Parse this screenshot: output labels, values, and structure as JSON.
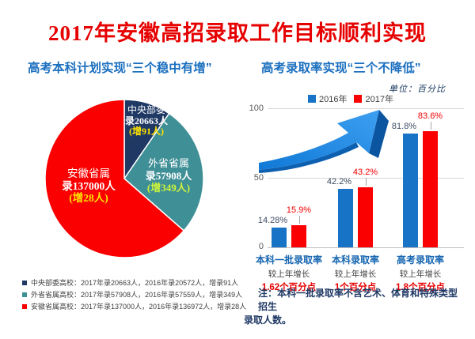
{
  "title": "2017年安徽高招录取工作目标顺利实现",
  "left": {
    "subtitle": "高考本科计划实现“三个稳中有增”",
    "legend": [
      {
        "color": "#1F3864",
        "text": "中央部委高校：2017年录20663人，2016年录20572人，增录91人"
      },
      {
        "color": "#3F8F96",
        "text": "外省省属高校：2017年录57908人，2016年录57559人，增录349人"
      },
      {
        "color": "#FA0000",
        "text": "安徽省属高校：2017年录137000人，2016年录136972人，增录28人"
      }
    ]
  },
  "right": {
    "subtitle": "高考录取率实现“三个不降低”",
    "unit": "单位：百分比",
    "note_line1": "注：本科一批录取率不含艺术、体育和特殊类型招生",
    "note_line2": "录取人数。"
  },
  "chart_data": [
    {
      "type": "pie",
      "title": "高考本科计划实现“三个稳中有增”",
      "start_angle_deg": 0,
      "slices": [
        {
          "id": "central-ministry",
          "name": "中央部委",
          "value": 20663,
          "value_2016": 20572,
          "delta": 91,
          "color": "#1F3864",
          "delta_color": "#FFE400",
          "label_lines": [
            "中央部委",
            "录20663人",
            "(增91人)"
          ]
        },
        {
          "id": "out-province",
          "name": "外省省属",
          "value": 57908,
          "value_2016": 57559,
          "delta": 349,
          "color": "#3F8F96",
          "delta_color": "#CCF33C",
          "label_lines": [
            "外省省属",
            "录57908人",
            "(增349人)"
          ]
        },
        {
          "id": "anhui-province",
          "name": "安徽省属",
          "value": 137000,
          "value_2016": 136972,
          "delta": 28,
          "color": "#FA0000",
          "delta_color": "#FFE400",
          "label_lines": [
            "安徽省属",
            "录137000人",
            "(增28人)"
          ]
        }
      ]
    },
    {
      "type": "bar",
      "title": "高考录取率实现“三个不降低”",
      "unit": "百分比",
      "categories": [
        "本科一批录取率",
        "本科录取率",
        "高考录取率"
      ],
      "series": [
        {
          "name": "2016年",
          "color": "#1673C5",
          "label_color": "#3B4C63",
          "values": [
            14.28,
            42.2,
            81.8
          ],
          "labels": [
            "14.28%",
            "42.2%",
            "81.8%"
          ]
        },
        {
          "name": "2017年",
          "color": "#FA0000",
          "label_color": "#F40000",
          "values": [
            15.9,
            43.2,
            83.6
          ],
          "labels": [
            "15.9%",
            "43.2%",
            "83.6%"
          ]
        }
      ],
      "ylim": [
        0,
        100
      ],
      "yticks": [
        0,
        50,
        100
      ],
      "legend_position": "top",
      "grid": true,
      "footer": [
        {
          "category": "本科一批录取率",
          "growth_label": "较上年增长",
          "growth_value": "1.62个百分点"
        },
        {
          "category": "本科录取率",
          "growth_label": "较上年增长",
          "growth_value": "1个百分点"
        },
        {
          "category": "高考录取率",
          "growth_label": "较上年增长",
          "growth_value": "1.8个百分点"
        }
      ]
    }
  ]
}
